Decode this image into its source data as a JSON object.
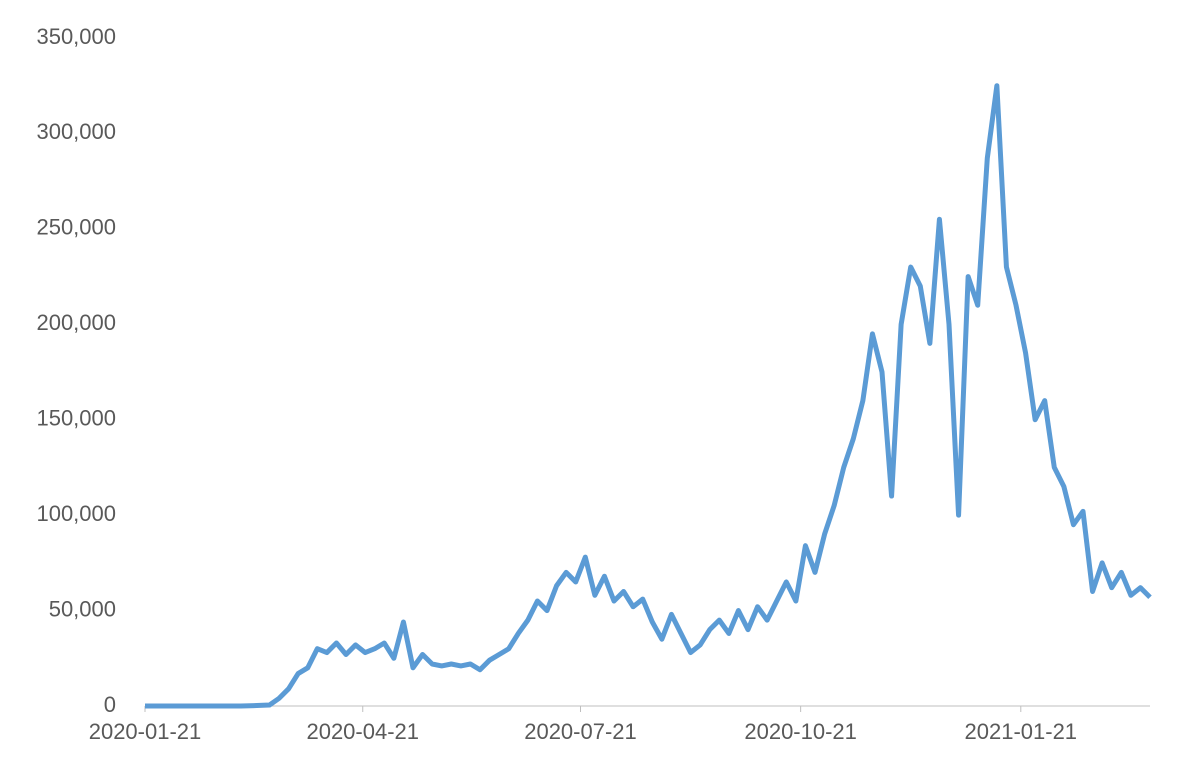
{
  "chart_data": {
    "type": "line",
    "x": [
      "2020-01-21",
      "2020-01-25",
      "2020-01-29",
      "2020-02-02",
      "2020-02-06",
      "2020-02-10",
      "2020-02-14",
      "2020-02-18",
      "2020-02-22",
      "2020-02-26",
      "2020-03-01",
      "2020-03-05",
      "2020-03-09",
      "2020-03-13",
      "2020-03-17",
      "2020-03-21",
      "2020-03-25",
      "2020-03-29",
      "2020-04-02",
      "2020-04-06",
      "2020-04-10",
      "2020-04-14",
      "2020-04-18",
      "2020-04-22",
      "2020-04-26",
      "2020-04-30",
      "2020-05-04",
      "2020-05-08",
      "2020-05-12",
      "2020-05-16",
      "2020-05-20",
      "2020-05-24",
      "2020-05-28",
      "2020-06-01",
      "2020-06-05",
      "2020-06-09",
      "2020-06-13",
      "2020-06-17",
      "2020-06-21",
      "2020-06-25",
      "2020-06-29",
      "2020-07-03",
      "2020-07-07",
      "2020-07-11",
      "2020-07-15",
      "2020-07-19",
      "2020-07-23",
      "2020-07-27",
      "2020-07-31",
      "2020-08-04",
      "2020-08-08",
      "2020-08-12",
      "2020-08-16",
      "2020-08-20",
      "2020-08-24",
      "2020-08-28",
      "2020-09-01",
      "2020-09-05",
      "2020-09-09",
      "2020-09-13",
      "2020-09-17",
      "2020-09-21",
      "2020-09-25",
      "2020-09-29",
      "2020-10-03",
      "2020-10-07",
      "2020-10-11",
      "2020-10-15",
      "2020-10-19",
      "2020-10-23",
      "2020-10-27",
      "2020-10-31",
      "2020-11-04",
      "2020-11-08",
      "2020-11-12",
      "2020-11-16",
      "2020-11-20",
      "2020-11-24",
      "2020-11-28",
      "2020-12-02",
      "2020-12-06",
      "2020-12-10",
      "2020-12-14",
      "2020-12-18",
      "2020-12-22",
      "2020-12-26",
      "2020-12-30",
      "2021-01-03",
      "2021-01-07",
      "2021-01-11",
      "2021-01-15",
      "2021-01-19",
      "2021-01-23",
      "2021-01-27",
      "2021-01-31",
      "2021-02-04",
      "2021-02-08",
      "2021-02-12",
      "2021-02-16",
      "2021-02-20",
      "2021-02-24",
      "2021-02-28",
      "2021-03-04",
      "2021-03-08",
      "2021-03-12",
      "2021-03-16"
    ],
    "series": [
      {
        "color": "#5b9bd5",
        "values": [
          0,
          0,
          0,
          0,
          0,
          0,
          0,
          0,
          0,
          0,
          0,
          100,
          300,
          500,
          4000,
          9000,
          17000,
          20000,
          30000,
          28000,
          33000,
          27000,
          32000,
          28000,
          30000,
          33000,
          25000,
          44000,
          20000,
          27000,
          22000,
          21000,
          22000,
          21000,
          22000,
          19000,
          24000,
          27000,
          30000,
          38000,
          45000,
          55000,
          50000,
          63000,
          70000,
          65000,
          78000,
          58000,
          68000,
          55000,
          60000,
          52000,
          56000,
          44000,
          35000,
          48000,
          38000,
          28000,
          32000,
          40000,
          45000,
          38000,
          50000,
          40000,
          52000,
          45000,
          55000,
          65000,
          55000,
          84000,
          70000,
          90000,
          105000,
          125000,
          140000,
          160000,
          195000,
          175000,
          110000,
          200000,
          230000,
          220000,
          190000,
          255000,
          200000,
          100000,
          225000,
          210000,
          287000,
          325000,
          230000,
          210000,
          185000,
          150000,
          160000,
          125000,
          115000,
          95000,
          102000,
          60000,
          75000,
          62000,
          70000,
          58000,
          62000,
          57000
        ]
      }
    ],
    "xlim": [
      "2020-01-21",
      "2021-03-16"
    ],
    "xticks": [
      "2020-01-21",
      "2020-04-21",
      "2020-07-21",
      "2020-10-21",
      "2021-01-21"
    ],
    "ylim": [
      0,
      350000
    ],
    "yticks": [
      0,
      {
        "value": 50000,
        "label": "50,000"
      },
      {
        "value": 100000,
        "label": "100,000"
      },
      {
        "value": 150000,
        "label": "150,000"
      },
      {
        "value": 200000,
        "label": "200,000"
      },
      {
        "value": 250000,
        "label": "250,000"
      },
      {
        "value": 300000,
        "label": "300,000"
      },
      {
        "value": 350000,
        "label": "350,000"
      }
    ]
  }
}
